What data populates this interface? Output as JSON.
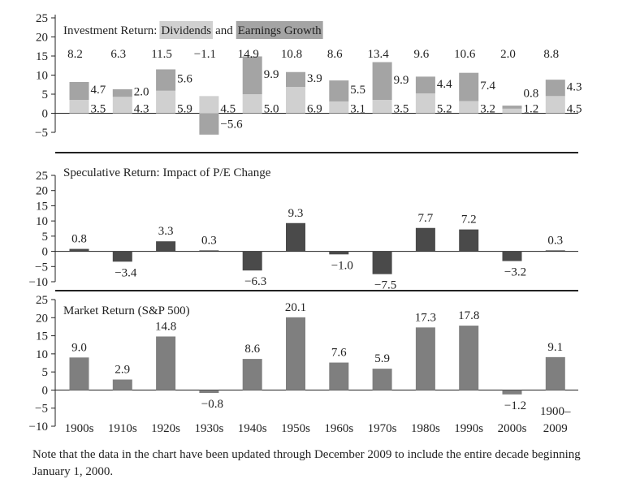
{
  "chart_data": [
    {
      "type": "bar",
      "stacked": true,
      "title_prefix": "Investment Return:",
      "title_mid": "and",
      "categories": [
        "1900s",
        "1910s",
        "1920s",
        "1930s",
        "1940s",
        "1950s",
        "1960s",
        "1970s",
        "1980s",
        "1990s",
        "2000s",
        "1900–2009"
      ],
      "totals": [
        "8.2",
        "6.3",
        "11.5",
        "−1.1",
        "14.9",
        "10.8",
        "8.6",
        "13.4",
        "9.6",
        "10.6",
        "2.0",
        "8.8"
      ],
      "series": [
        {
          "name": "Dividends",
          "color": "#d0d0d0",
          "values": [
            3.5,
            4.3,
            5.9,
            4.5,
            5.0,
            6.9,
            3.1,
            3.5,
            5.2,
            3.2,
            1.2,
            4.5
          ],
          "labels": [
            "3.5",
            "4.3",
            "5.9",
            "4.5",
            "5.0",
            "6.9",
            "3.1",
            "3.5",
            "5.2",
            "3.2",
            "1.2",
            "4.5"
          ]
        },
        {
          "name": "Earnings Growth",
          "color": "#a4a4a4",
          "values": [
            4.7,
            2.0,
            5.6,
            -5.6,
            9.9,
            3.9,
            5.5,
            9.9,
            4.4,
            7.4,
            0.8,
            4.3
          ],
          "labels": [
            "4.7",
            "2.0",
            "5.6",
            "−5.6",
            "9.9",
            "3.9",
            "5.5",
            "9.9",
            "4.4",
            "7.4",
            "0.8",
            "4.3"
          ]
        }
      ],
      "yticks": [
        "−5",
        "0",
        "5",
        "10",
        "15",
        "20",
        "25"
      ],
      "ylim": [
        -5,
        25
      ]
    },
    {
      "type": "bar",
      "title": "Speculative Return: Impact of P/E Change",
      "color": "#4a4a4a",
      "values": [
        0.8,
        -3.4,
        3.3,
        0.3,
        -6.3,
        9.3,
        -1.0,
        -7.5,
        7.7,
        7.2,
        -3.2,
        0.3
      ],
      "labels": [
        "0.8",
        "−3.4",
        "3.3",
        "0.3",
        "−6.3",
        "9.3",
        "−1.0",
        "−7.5",
        "7.7",
        "7.2",
        "−3.2",
        "0.3"
      ],
      "yticks": [
        "−10",
        "−5",
        "0",
        "5",
        "10",
        "15",
        "20",
        "25"
      ],
      "ylim": [
        -10,
        25
      ]
    },
    {
      "type": "bar",
      "title": "Market Return (S&P 500)",
      "color": "#7f7f7f",
      "values": [
        9.0,
        2.9,
        14.8,
        -0.8,
        8.6,
        20.1,
        7.6,
        5.9,
        17.3,
        17.8,
        -1.2,
        9.1
      ],
      "labels": [
        "9.0",
        "2.9",
        "14.8",
        "−0.8",
        "8.6",
        "20.1",
        "7.6",
        "5.9",
        "17.3",
        "17.8",
        "−1.2",
        "9.1"
      ],
      "yticks": [
        "−10",
        "−5",
        "0",
        "5",
        "10",
        "15",
        "20",
        "25"
      ],
      "ylim": [
        -10,
        25
      ],
      "xticks": [
        "1900s",
        "1910s",
        "1920s",
        "1930s",
        "1940s",
        "1950s",
        "1960s",
        "1970s",
        "1980s",
        "1990s",
        "2000s",
        "1900–",
        "2009"
      ]
    }
  ],
  "note": "Note that the data in the chart have been updated through December 2009 to include the entire decade beginning January 1, 2000."
}
